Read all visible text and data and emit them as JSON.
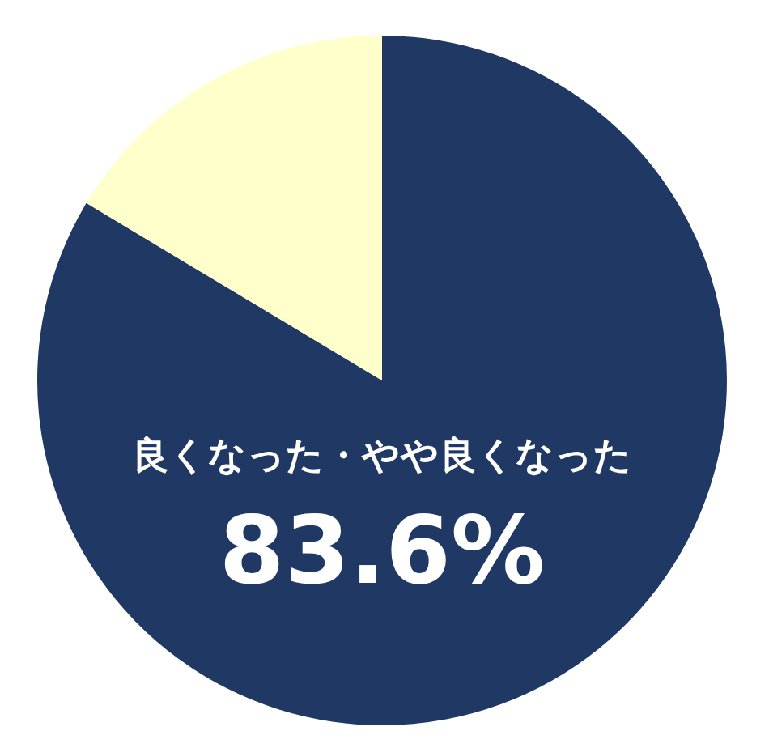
{
  "chart_data": {
    "type": "pie",
    "categories": [
      "良くなった・やや良くなった",
      null
    ],
    "values": [
      83.6,
      16.4
    ],
    "colors": [
      "#1f3864",
      "#ffffcc"
    ],
    "value_labels": [
      "83.6%",
      null
    ],
    "legend": false
  }
}
